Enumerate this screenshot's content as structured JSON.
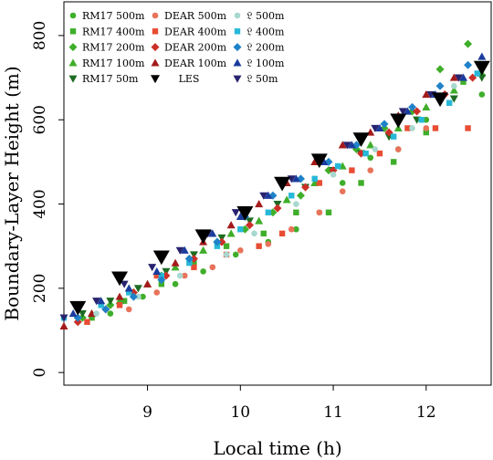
{
  "chart_data": {
    "type": "scatter",
    "xlabel": "Local time (h)",
    "ylabel": "Boundary-Layer Height (m)",
    "xlim": [
      8.1,
      12.7
    ],
    "ylim": [
      -30,
      880
    ],
    "xticks": [
      9,
      10,
      11,
      12
    ],
    "yticks": [
      0,
      200,
      400,
      600,
      800
    ],
    "legend_position": "top-left",
    "series": [
      {
        "name": "RM17 500m",
        "color": "#3fae2a",
        "marker": "circle",
        "x": [
          8.6,
          8.95,
          9.3,
          9.6,
          9.95,
          10.3,
          10.6,
          10.85,
          11.1,
          11.4,
          11.7,
          12.0,
          12.6
        ],
        "y": [
          140,
          180,
          210,
          240,
          280,
          310,
          340,
          380,
          450,
          510,
          530,
          600,
          660
        ]
      },
      {
        "name": "RM17 400m",
        "color": "#3fae2a",
        "marker": "square",
        "x": [
          8.4,
          8.75,
          9.15,
          9.5,
          9.85,
          10.25,
          10.6,
          10.95,
          11.3,
          11.65,
          12.0,
          12.4
        ],
        "y": [
          130,
          170,
          210,
          260,
          300,
          330,
          380,
          380,
          450,
          500,
          570,
          690
        ]
      },
      {
        "name": "RM17 200m",
        "color": "#3fae2a",
        "marker": "diamond",
        "x": [
          8.3,
          8.6,
          8.85,
          9.15,
          9.45,
          9.75,
          10.05,
          10.35,
          10.65,
          10.95,
          11.25,
          11.55,
          11.85,
          12.15,
          12.45
        ],
        "y": [
          130,
          160,
          190,
          230,
          270,
          310,
          340,
          380,
          420,
          480,
          530,
          580,
          620,
          720,
          780
        ]
      },
      {
        "name": "RM17 100m",
        "color": "#3fae2a",
        "marker": "triangle-up",
        "x": [
          8.4,
          8.7,
          9.0,
          9.3,
          9.6,
          9.9,
          10.2,
          10.5,
          10.8,
          11.1,
          11.4,
          11.7,
          12.0,
          12.3,
          12.6
        ],
        "y": [
          140,
          170,
          210,
          250,
          290,
          330,
          360,
          410,
          450,
          490,
          540,
          580,
          630,
          670,
          710
        ]
      },
      {
        "name": "RM17 50m",
        "color": "#1d6b22",
        "marker": "triangle-down",
        "x": [
          8.3,
          8.6,
          8.9,
          9.2,
          9.5,
          9.8,
          10.1,
          10.4,
          10.7,
          11.0,
          11.3,
          11.6,
          11.9,
          12.3,
          12.6
        ],
        "y": [
          140,
          170,
          200,
          240,
          280,
          320,
          360,
          400,
          440,
          480,
          520,
          560,
          600,
          650,
          700
        ]
      },
      {
        "name": "DEAR 500m",
        "color": "#e8735a",
        "marker": "circle",
        "x": [
          8.8,
          9.1,
          9.4,
          9.7,
          10.0,
          10.3,
          10.55,
          10.85,
          11.1,
          11.4,
          11.7,
          12.0
        ],
        "y": [
          150,
          190,
          230,
          250,
          290,
          305,
          340,
          380,
          430,
          480,
          530,
          580
        ]
      },
      {
        "name": "DEAR 400m",
        "color": "#e84d33",
        "marker": "square",
        "x": [
          8.35,
          8.7,
          9.1,
          9.5,
          9.85,
          10.2,
          10.45,
          10.85,
          11.2,
          11.5,
          11.8,
          12.1,
          12.45
        ],
        "y": [
          120,
          160,
          230,
          250,
          280,
          300,
          330,
          450,
          480,
          520,
          580,
          580,
          580
        ]
      },
      {
        "name": "DEAR 200m",
        "color": "#cc2f27",
        "marker": "diamond",
        "x": [
          8.25,
          8.55,
          8.85,
          9.2,
          9.5,
          9.8,
          10.1,
          10.4,
          10.7,
          11.0,
          11.3,
          11.6,
          11.9,
          12.2,
          12.5
        ],
        "y": [
          120,
          150,
          190,
          230,
          270,
          310,
          350,
          390,
          440,
          480,
          520,
          570,
          620,
          660,
          700
        ]
      },
      {
        "name": "DEAR 100m",
        "color": "#a51a1a",
        "marker": "triangle-up",
        "x": [
          8.1,
          8.4,
          8.7,
          9.0,
          9.3,
          9.6,
          9.9,
          10.2,
          10.5,
          10.8,
          11.1,
          11.4,
          11.7,
          12.0,
          12.3,
          12.6
        ],
        "y": [
          110,
          140,
          180,
          210,
          260,
          310,
          350,
          400,
          450,
          500,
          540,
          570,
          610,
          660,
          700,
          730
        ]
      },
      {
        "name": "LES",
        "color": "#000000",
        "marker": "triangle-down-large",
        "x": [
          8.25,
          8.7,
          9.15,
          9.6,
          10.05,
          10.45,
          10.85,
          11.3,
          11.7,
          12.15,
          12.6
        ],
        "y": [
          155,
          225,
          275,
          325,
          380,
          450,
          505,
          555,
          600,
          650,
          725
        ]
      },
      {
        "name": "𝔏 500m",
        "color": "#a8d8d0",
        "marker": "circle",
        "x": [
          8.45,
          8.9,
          9.35,
          9.85,
          10.15,
          10.6,
          11.0,
          11.45,
          11.85,
          12.3
        ],
        "y": [
          140,
          180,
          230,
          280,
          330,
          400,
          470,
          530,
          580,
          680
        ]
      },
      {
        "name": "𝔏 400m",
        "color": "#27b8d8",
        "marker": "square",
        "x": [
          8.1,
          8.5,
          8.8,
          9.15,
          9.45,
          9.75,
          10.0,
          10.3,
          10.55,
          10.8,
          11.05,
          11.35,
          11.65,
          11.95,
          12.25,
          12.55
        ],
        "y": [
          130,
          160,
          190,
          230,
          260,
          300,
          340,
          380,
          420,
          460,
          490,
          520,
          560,
          600,
          640,
          710
        ]
      },
      {
        "name": "𝔏 200m",
        "color": "#1f82c8",
        "marker": "diamond",
        "x": [
          8.25,
          8.55,
          8.85,
          9.15,
          9.45,
          9.75,
          10.05,
          10.35,
          10.65,
          10.95,
          11.25,
          11.55,
          11.85,
          12.15,
          12.45
        ],
        "y": [
          130,
          150,
          180,
          220,
          270,
          310,
          370,
          420,
          460,
          500,
          540,
          590,
          630,
          680,
          730
        ]
      },
      {
        "name": "𝔏 100m",
        "color": "#1a3c9e",
        "marker": "triangle-up",
        "x": [
          8.2,
          8.5,
          8.8,
          9.1,
          9.4,
          9.7,
          10.0,
          10.3,
          10.6,
          10.9,
          11.2,
          11.5,
          11.8,
          12.1,
          12.4,
          12.6
        ],
        "y": [
          140,
          170,
          200,
          240,
          290,
          330,
          370,
          420,
          460,
          500,
          540,
          580,
          620,
          660,
          700,
          750
        ]
      },
      {
        "name": "𝔏 50m",
        "color": "#28236f",
        "marker": "triangle-down",
        "x": [
          8.1,
          8.45,
          8.75,
          9.05,
          9.35,
          9.65,
          9.95,
          10.25,
          10.55,
          10.85,
          11.15,
          11.45,
          11.75,
          12.05,
          12.35
        ],
        "y": [
          130,
          170,
          210,
          250,
          290,
          330,
          380,
          420,
          460,
          500,
          540,
          580,
          620,
          660,
          700
        ]
      }
    ]
  }
}
